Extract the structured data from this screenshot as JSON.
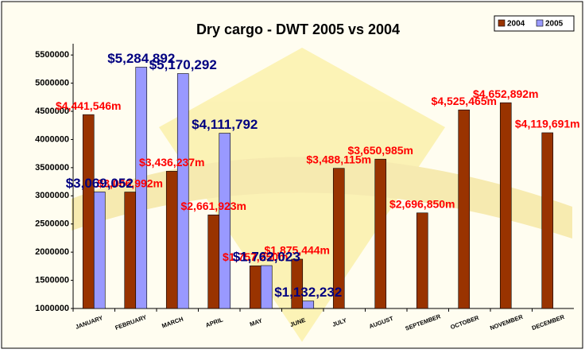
{
  "chart_data": {
    "type": "bar",
    "title": "Dry cargo - DWT 2005 vs 2004",
    "categories": [
      "JANUARY",
      "FEBRUARY",
      "MARCH",
      "APRIL",
      "MAY",
      "JUNE",
      "JULY",
      "AUGUST",
      "SEPTEMBER",
      "OCTOBER",
      "NOVEMBER",
      "DECEMBER"
    ],
    "series": [
      {
        "name": "2004",
        "color": "#993300",
        "values": [
          4441546,
          3066992,
          3436237,
          2661923,
          1757250,
          1875444,
          3488115,
          3650985,
          2696850,
          4525465,
          4652892,
          4119691
        ],
        "value_labels": [
          "$4,441,546m",
          "$3,066,992m",
          "$3,436,237m",
          "$2,661,923m",
          "$1,757,250m",
          "$1,875,444m",
          "$3,488,115m",
          "$3,650,985m",
          "$2,696,850m",
          "$4,525,465m",
          "$4,652,892m",
          "$4,119,691m"
        ]
      },
      {
        "name": "2005",
        "color": "#9999ff",
        "values": [
          3069052,
          5284892,
          5170292,
          4111792,
          1762023,
          1132232,
          null,
          null,
          null,
          null,
          null,
          null
        ],
        "value_labels": [
          "$3,069,052",
          "$5,284,892",
          "$5,170,292",
          "$4,111,792",
          "$1,762,023",
          "$1,132,232",
          null,
          null,
          null,
          null,
          null,
          null
        ]
      }
    ],
    "ylim": [
      1000000,
      5700000
    ],
    "yticks": [
      1000000,
      1500000,
      2000000,
      2500000,
      3000000,
      3500000,
      4000000,
      4500000,
      5000000,
      5500000
    ],
    "grid": false,
    "legend": "top-right"
  }
}
